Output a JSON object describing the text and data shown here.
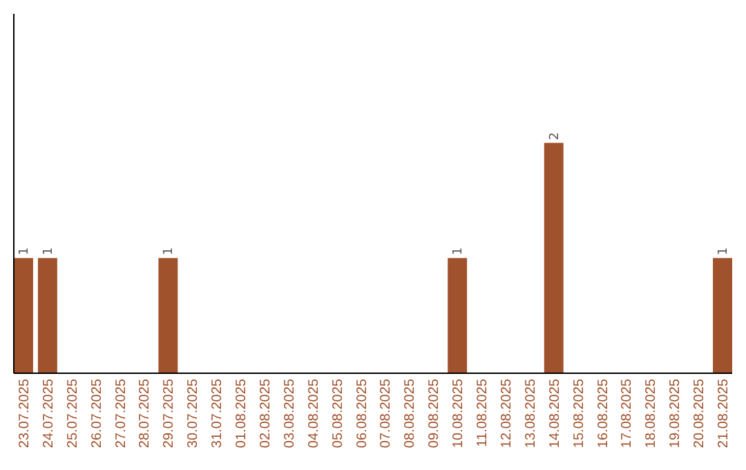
{
  "chart_data": {
    "type": "bar",
    "categories": [
      "23.07.2025",
      "24.07.2025",
      "25.07.2025",
      "26.07.2025",
      "27.07.2025",
      "28.07.2025",
      "29.07.2025",
      "30.07.2025",
      "31.07.2025",
      "01.08.2025",
      "02.08.2025",
      "03.08.2025",
      "04.08.2025",
      "05.08.2025",
      "06.08.2025",
      "07.08.2025",
      "08.08.2025",
      "09.08.2025",
      "10.08.2025",
      "11.08.2025",
      "12.08.2025",
      "13.08.2025",
      "14.08.2025",
      "15.08.2025",
      "16.08.2025",
      "17.08.2025",
      "18.08.2025",
      "19.08.2025",
      "20.08.2025",
      "21.08.2025"
    ],
    "values": [
      1,
      1,
      0,
      0,
      0,
      0,
      1,
      0,
      0,
      0,
      0,
      0,
      0,
      0,
      0,
      0,
      0,
      0,
      1,
      0,
      0,
      0,
      2,
      0,
      0,
      0,
      0,
      0,
      0,
      1
    ],
    "value_labels": [
      "1",
      "1",
      null,
      null,
      null,
      null,
      "1",
      null,
      null,
      null,
      null,
      null,
      null,
      null,
      null,
      null,
      null,
      null,
      "1",
      null,
      null,
      null,
      "2",
      null,
      null,
      null,
      null,
      null,
      null,
      "1"
    ],
    "color": "#a0522d"
  }
}
